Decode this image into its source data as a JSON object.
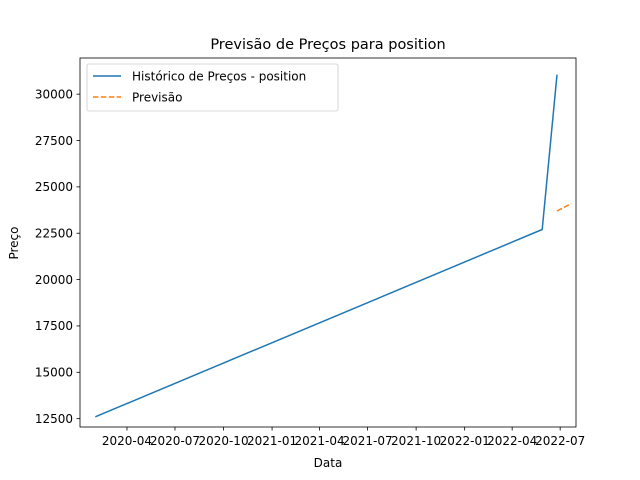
{
  "chart_data": {
    "type": "line",
    "title": "Previsão de Preços para position",
    "xlabel": "Data",
    "ylabel": "Preço",
    "xlim": [
      "2020-01-03",
      "2022-07-31"
    ],
    "ylim": [
      12050,
      31950
    ],
    "x_ticks": [
      "2020-04",
      "2020-07",
      "2020-10",
      "2021-01",
      "2021-04",
      "2021-07",
      "2021-10",
      "2022-01",
      "2022-04",
      "2022-07"
    ],
    "y_ticks": [
      12500,
      15000,
      17500,
      20000,
      22500,
      25000,
      27500,
      30000
    ],
    "grid": false,
    "legend_position": "upper-left",
    "series": [
      {
        "name": "Histórico de Preços - position",
        "color": "#1f77b4",
        "style": "solid",
        "x": [
          "2020-02-01",
          "2022-05-28",
          "2022-06-25"
        ],
        "y": [
          12600,
          22700,
          31050
        ]
      },
      {
        "name": "Previsão",
        "color": "#ff7f0e",
        "style": "dashed",
        "x": [
          "2022-06-25",
          "2022-07-22"
        ],
        "y": [
          23700,
          24100
        ]
      }
    ]
  }
}
